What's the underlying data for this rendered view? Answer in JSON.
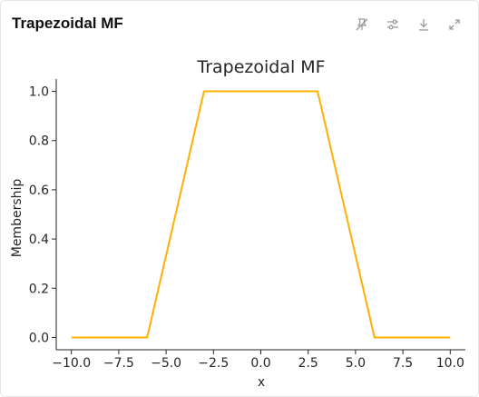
{
  "panel": {
    "title": "Trapezoidal MF",
    "toolbar": [
      {
        "name": "pin-icon",
        "label": "Pin"
      },
      {
        "name": "settings-icon",
        "label": "Settings"
      },
      {
        "name": "download-icon",
        "label": "Download"
      },
      {
        "name": "expand-icon",
        "label": "Expand"
      }
    ]
  },
  "chart_data": {
    "type": "line",
    "title": "Trapezoidal MF",
    "xlabel": "x",
    "ylabel": "Membership",
    "xlim": [
      -10.8,
      10.8
    ],
    "ylim": [
      -0.05,
      1.05
    ],
    "xticks": [
      -10.0,
      -7.5,
      -5.0,
      -2.5,
      0.0,
      2.5,
      5.0,
      7.5,
      10.0
    ],
    "xtick_labels": [
      "−10.0",
      "−7.5",
      "−5.0",
      "−2.5",
      "0.0",
      "2.5",
      "5.0",
      "7.5",
      "10.0"
    ],
    "yticks": [
      0.0,
      0.2,
      0.4,
      0.6,
      0.8,
      1.0
    ],
    "ytick_labels": [
      "0.0",
      "0.2",
      "0.4",
      "0.6",
      "0.8",
      "1.0"
    ],
    "grid": false,
    "series": [
      {
        "color": "#ffb000",
        "x": [
          -10,
          -6,
          -3,
          3,
          6,
          10
        ],
        "y": [
          0,
          0,
          1,
          1,
          0,
          0
        ]
      }
    ]
  }
}
